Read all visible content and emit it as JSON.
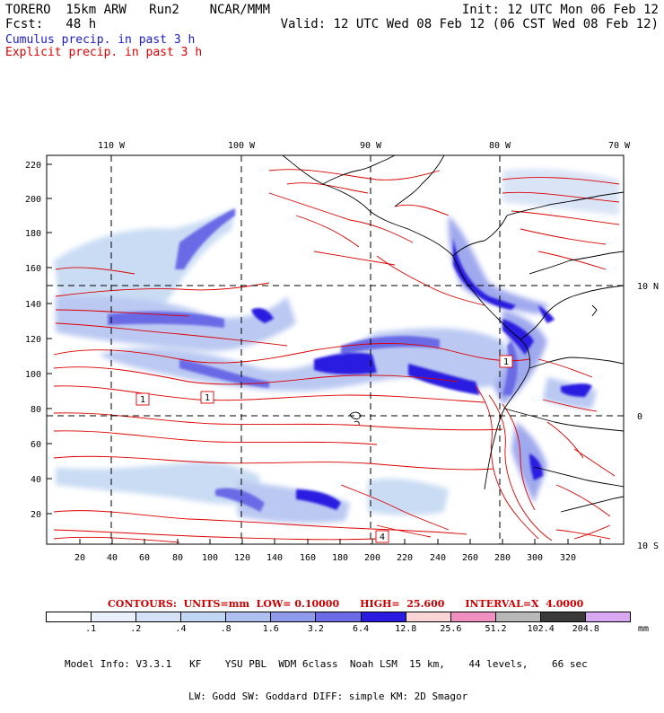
{
  "header": {
    "line1_left": "TORERO  15km ARW   Run2    NCAR/MMM",
    "line1_right": "Init: 12 UTC Mon 06 Feb 12",
    "line2_left": "Fcst:   48 h",
    "line2_right": "Valid: 12 UTC Wed 08 Feb 12 (06 CST Wed 08 Feb 12)"
  },
  "fields": {
    "cumulus": "Cumulus precip. in past 3 h",
    "explicit": "Explicit precip. in past 3 h",
    "cumulus_color": "#1a1acc",
    "explicit_color": "#dd0000"
  },
  "map": {
    "top_lon_labels": [
      "110 W",
      "100 W",
      "90 W",
      "80 W",
      "70 W"
    ],
    "right_lat_labels": [
      "10 N",
      "0",
      "10 S"
    ],
    "left_y_ticks": [
      "220",
      "200",
      "180",
      "160",
      "140",
      "120",
      "100",
      "80",
      "60",
      "40",
      "20"
    ],
    "bottom_x_ticks": [
      "20",
      "40",
      "60",
      "80",
      "100",
      "120",
      "140",
      "160",
      "180",
      "200",
      "220",
      "240",
      "260",
      "280",
      "300",
      "320"
    ],
    "contour_box_labels": [
      "1",
      "1",
      "1",
      "4"
    ]
  },
  "contours": {
    "text": "CONTOURS:  UNITS=mm  LOW= 0.10000      HIGH=  25.600      INTERVAL=X  4.0000"
  },
  "colorbar": {
    "colors": [
      "#ffffff",
      "#eaf0fb",
      "#d3e0f6",
      "#c0d6f2",
      "#aebff0",
      "#8f9bea",
      "#6b6be6",
      "#2b1be0",
      "#fbd5d5",
      "#f090c0",
      "#b8b8b8",
      "#3a3a3a",
      "#d8a8f2"
    ],
    "labels": [
      ".1",
      ".2",
      ".4",
      ".8",
      "1.6",
      "3.2",
      "6.4",
      "12.8",
      "25.6",
      "51.2",
      "102.4",
      "204.8"
    ],
    "unit": "mm"
  },
  "model_info": {
    "line1": "Model Info: V3.3.1   KF    YSU PBL  WDM 6class  Noah LSM  15 km,    44 levels,    66 sec",
    "line2": "LW: Godd SW: Goddard DIFF: simple KM: 2D Smagor"
  }
}
